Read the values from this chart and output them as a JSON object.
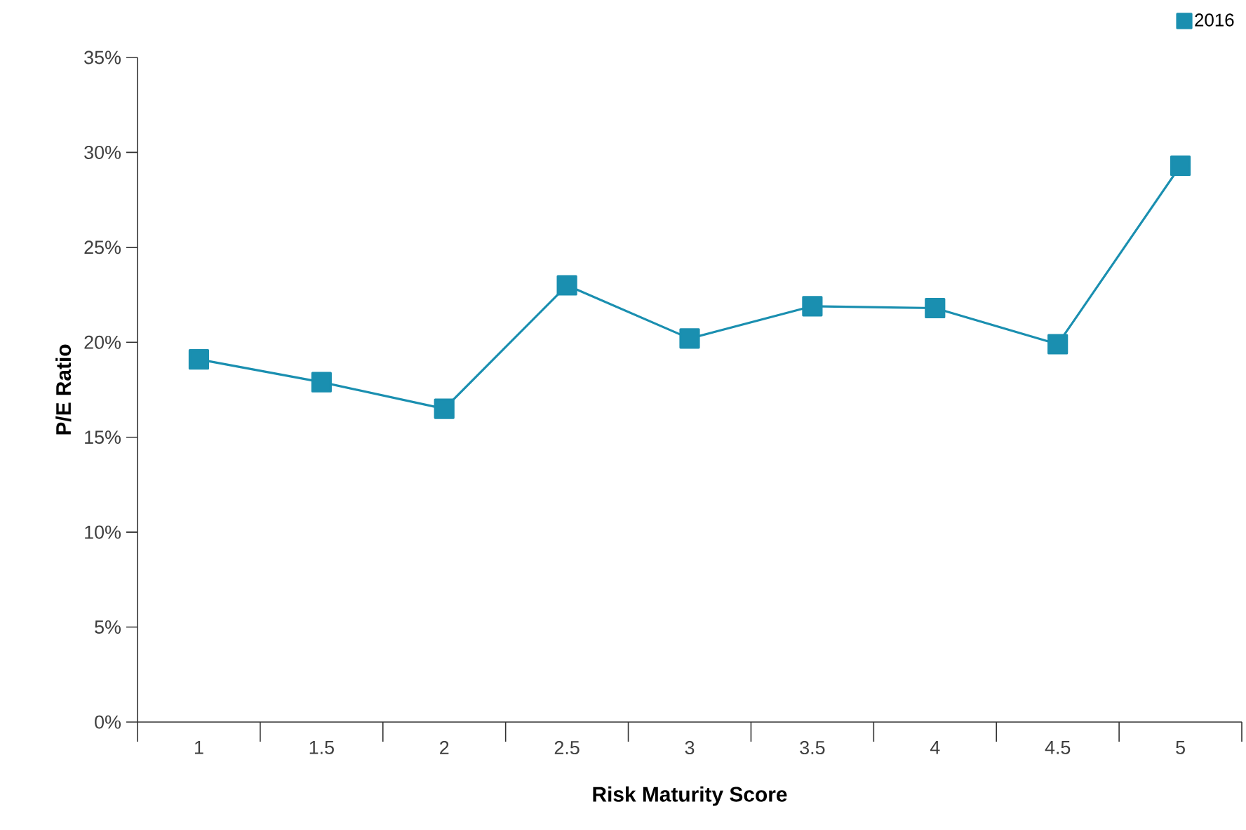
{
  "chart_data": {
    "type": "line",
    "xlabel": "Risk Maturity Score",
    "ylabel": "P/E Ratio",
    "categories": [
      "1",
      "1.5",
      "2",
      "2.5",
      "3",
      "3.5",
      "4",
      "4.5",
      "5"
    ],
    "series": [
      {
        "name": "2016",
        "color": "#1a8fb0",
        "values": [
          19.1,
          17.9,
          16.5,
          23.0,
          20.2,
          21.9,
          21.8,
          19.9,
          29.3
        ]
      }
    ],
    "ylim": [
      0,
      35
    ],
    "yticks": [
      {
        "value": 0,
        "label": "0%"
      },
      {
        "value": 5,
        "label": "5%"
      },
      {
        "value": 10,
        "label": "10%"
      },
      {
        "value": 15,
        "label": "15%"
      },
      {
        "value": 20,
        "label": "20%"
      },
      {
        "value": 25,
        "label": "25%"
      },
      {
        "value": 30,
        "label": "30%"
      },
      {
        "value": 35,
        "label": "35%"
      }
    ],
    "marker": "square",
    "line_style": "solid",
    "legend": "top right",
    "grid": false
  }
}
